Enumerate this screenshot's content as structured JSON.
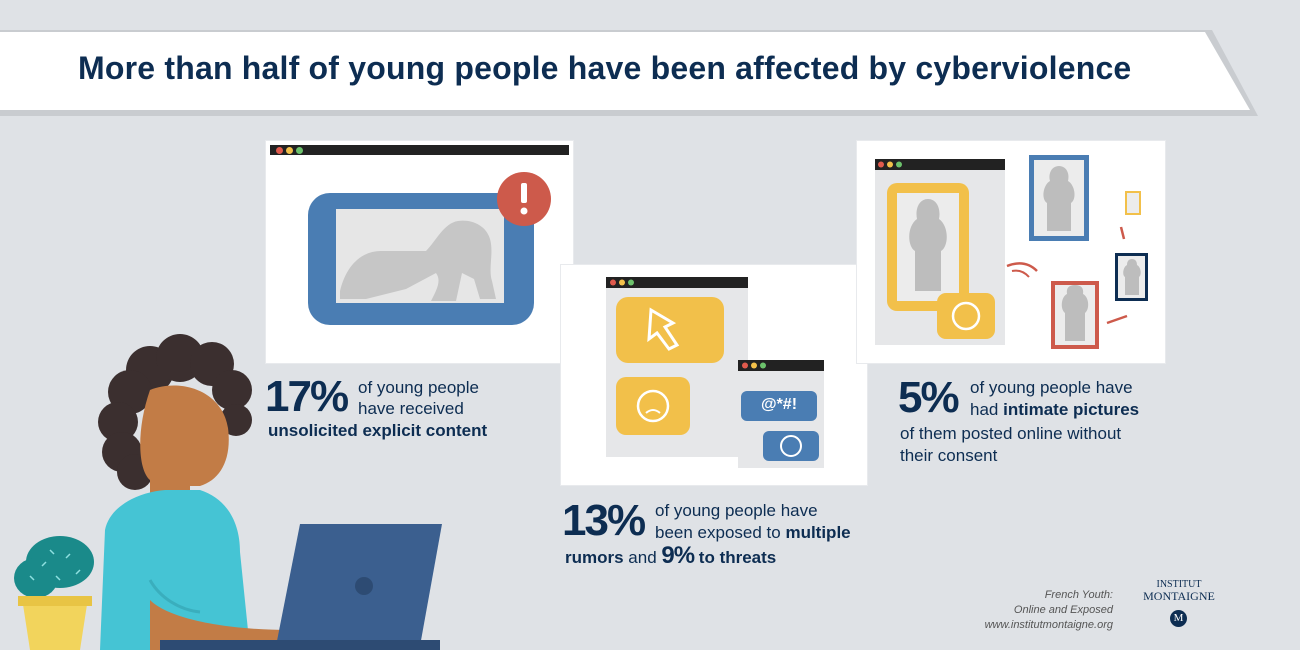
{
  "title": "More than half of young people have been affected by cyberviolence",
  "stats": [
    {
      "pct": "17%",
      "line1": "of young people",
      "line2": "have received",
      "line3": "unsolicited explicit content"
    },
    {
      "pct": "13%",
      "line1": "of young people have",
      "line2a": "been exposed to ",
      "line2b": "multiple",
      "line3a": "rumors",
      "line3b": " and ",
      "pct2": "9%",
      "line3c": " to threats"
    },
    {
      "pct": "5%",
      "line1": "of young people have",
      "line2a": "had ",
      "line2b": "intimate pictures",
      "line3": "of them posted online without",
      "line4": "their consent"
    }
  ],
  "chat": {
    "symbols": "@*#!"
  },
  "source": {
    "line1": "French Youth:",
    "line2": "Online and Exposed",
    "line3": "www.institutmontaigne.org"
  },
  "logo": {
    "line1": "INSTITUT",
    "line2": "MONTAIGNE",
    "mark": "M"
  },
  "colors": {
    "navy": "#0d2d52",
    "blue": "#4a7db3",
    "yellow": "#f2c04a",
    "red": "#cd5a4b",
    "teal": "#45c4d4",
    "skin": "#c27c46"
  }
}
